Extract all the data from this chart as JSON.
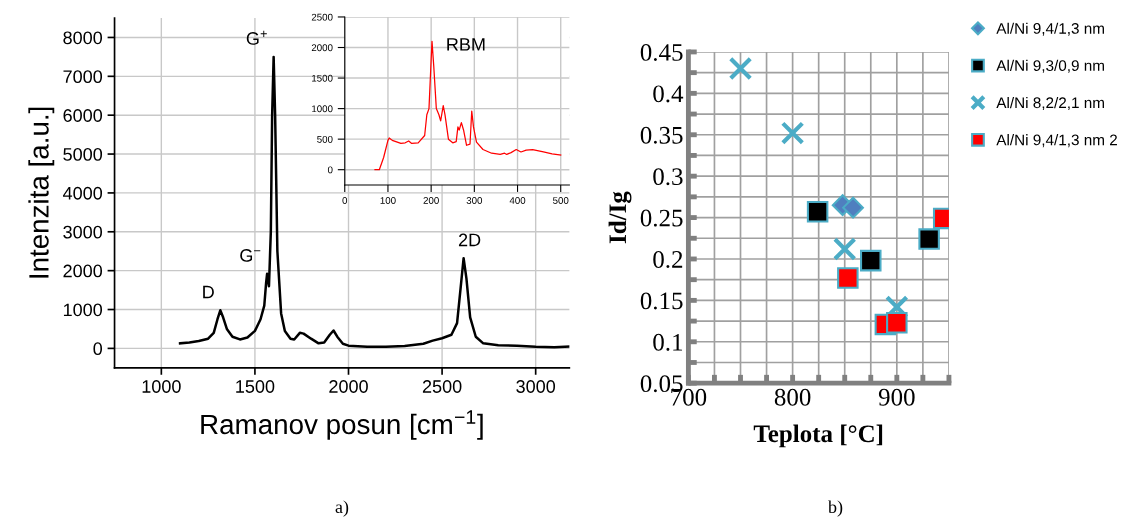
{
  "chart_data": [
    {
      "type": "line",
      "xlabel": "Ramanov posun [cm$^{−1}$]",
      "ylabel": "Intenzita [a.u.]",
      "xlim": [
        750,
        3180
      ],
      "ylim": [
        -500,
        8500
      ],
      "xticks": [
        1000,
        1500,
        2000,
        2500,
        3000
      ],
      "yticks": [
        0,
        1000,
        2000,
        3000,
        4000,
        5000,
        6000,
        7000,
        8000
      ],
      "grid": true,
      "series": [
        {
          "color": "#000000",
          "x": [
            1100,
            1150,
            1200,
            1250,
            1280,
            1300,
            1315,
            1330,
            1350,
            1380,
            1420,
            1460,
            1500,
            1530,
            1550,
            1560,
            1565,
            1575,
            1585,
            1592,
            1600,
            1608,
            1620,
            1640,
            1660,
            1690,
            1710,
            1740,
            1760,
            1800,
            1840,
            1870,
            1900,
            1920,
            1940,
            1970,
            2000,
            2100,
            2200,
            2300,
            2400,
            2450,
            2500,
            2550,
            2580,
            2600,
            2615,
            2630,
            2650,
            2680,
            2720,
            2800,
            2900,
            3000,
            3100,
            3180
          ],
          "values": [
            130,
            150,
            190,
            250,
            400,
            750,
            980,
            800,
            500,
            300,
            230,
            280,
            450,
            750,
            1100,
            1700,
            1920,
            1600,
            3000,
            6000,
            7500,
            6000,
            2500,
            900,
            450,
            250,
            230,
            400,
            380,
            250,
            130,
            150,
            350,
            460,
            300,
            120,
            70,
            40,
            40,
            60,
            120,
            200,
            260,
            350,
            650,
            1600,
            2320,
            1800,
            800,
            300,
            130,
            80,
            70,
            40,
            30,
            50
          ]
        }
      ],
      "annotations": [
        {
          "text": "D",
          "x": 1315,
          "y": 980
        },
        {
          "text": "G$^{−}$",
          "x": 1565,
          "y": 1920
        },
        {
          "text": "G$^{+}$",
          "x": 1600,
          "y": 7500
        },
        {
          "text": "2D",
          "x": 2615,
          "y": 2320
        },
        "a)"
      ]
    },
    {
      "type": "line",
      "xlim": [
        0,
        520
      ],
      "ylim": [
        -250,
        2500
      ],
      "xticks": [
        0,
        100,
        200,
        300,
        400,
        500
      ],
      "yticks": [
        0,
        500,
        1000,
        1500,
        2000,
        2500
      ],
      "grid": true,
      "series": [
        {
          "color": "#ff0000",
          "x": [
            70,
            80,
            90,
            100,
            103,
            110,
            130,
            140,
            148,
            155,
            170,
            185,
            190,
            195,
            200,
            202,
            206,
            212,
            218,
            222,
            228,
            232,
            240,
            250,
            258,
            262,
            265,
            270,
            275,
            282,
            290,
            294,
            298,
            305,
            320,
            340,
            360,
            370,
            375,
            385,
            397,
            408,
            420,
            435,
            460,
            480,
            500
          ],
          "values": [
            0,
            0,
            200,
            480,
            520,
            480,
            430,
            440,
            470,
            430,
            440,
            560,
            900,
            1000,
            1800,
            2100,
            1700,
            1000,
            900,
            800,
            1050,
            900,
            500,
            440,
            460,
            700,
            650,
            770,
            650,
            400,
            420,
            960,
            700,
            450,
            330,
            270,
            250,
            270,
            250,
            280,
            330,
            290,
            320,
            330,
            290,
            260,
            240
          ]
        }
      ],
      "annotations": [
        "RBM"
      ]
    },
    {
      "type": "scatter",
      "xlabel": "Teplota [°C]",
      "ylabel": "Id/Ig",
      "xlim": [
        700,
        950
      ],
      "ylim": [
        0.05,
        0.45
      ],
      "xticks": [
        700,
        {
          "value": 725,
          "label": null
        },
        {
          "value": 750,
          "label": null
        },
        {
          "value": 775,
          "label": null
        },
        800,
        {
          "value": 825,
          "label": null
        },
        {
          "value": 850,
          "label": null
        },
        {
          "value": 875,
          "label": null
        },
        900,
        {
          "value": 925,
          "label": null
        },
        {
          "value": 950,
          "label": null
        }
      ],
      "yticks": [
        0.05,
        {
          "value": 0.075,
          "label": null
        },
        0.1,
        {
          "value": 0.125,
          "label": null
        },
        0.15,
        {
          "value": 0.175,
          "label": null
        },
        0.2,
        {
          "value": 0.225,
          "label": null
        },
        0.25,
        {
          "value": 0.275,
          "label": null
        },
        0.3,
        {
          "value": 0.325,
          "label": null
        },
        0.35,
        {
          "value": 0.375,
          "label": null
        },
        0.4,
        {
          "value": 0.425,
          "label": null
        },
        0.45
      ],
      "grid": true,
      "legend": "right",
      "series": [
        {
          "name": "Al/Ni 9,4/1,3 nm",
          "color": "#4f7fbf",
          "marker": "diamond",
          "x": [
            848,
            858
          ],
          "values": [
            0.265,
            0.262
          ]
        },
        {
          "name": "Al/Ni 9,3/0,9 nm",
          "color": "#000000",
          "marker": "square",
          "x": [
            824,
            875,
            931
          ],
          "values": [
            0.257,
            0.198,
            0.224
          ]
        },
        {
          "name": "Al/Ni 8,2/2,1 nm",
          "color": "#4bacc6",
          "marker": "cross",
          "x": [
            750,
            800,
            850,
            900
          ],
          "values": [
            0.43,
            0.352,
            0.212,
            0.142
          ]
        },
        {
          "name": "Al/Ni 9,4/1,3 nm 2",
          "color": "#ff0000",
          "marker": "square",
          "x": [
            853,
            889,
            900,
            945
          ],
          "values": [
            0.177,
            0.121,
            0.123,
            0.249
          ]
        }
      ],
      "annotations": [
        "b)"
      ]
    }
  ]
}
